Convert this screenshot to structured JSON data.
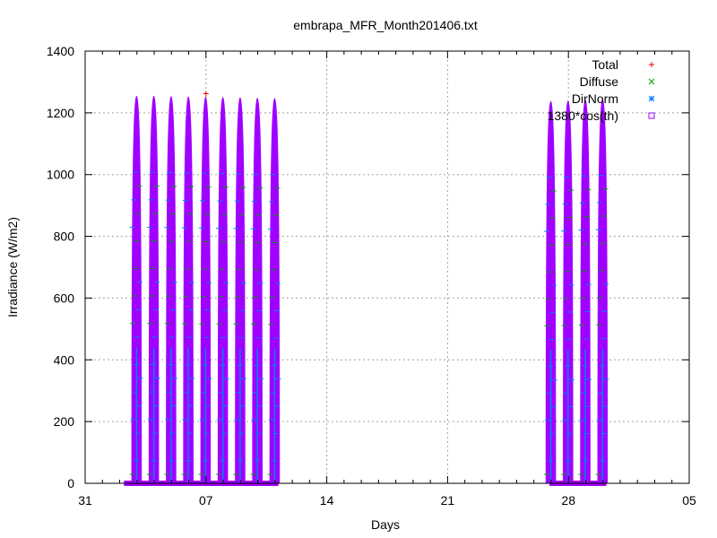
{
  "chart_data": {
    "type": "scatter",
    "title": "embrapa_MFR_Month201406.txt",
    "xlabel": "Days",
    "ylabel": "Irradiance (W/m2)",
    "xlim": [
      "2014-05-31",
      "2014-07-05"
    ],
    "ylim": [
      0,
      1400
    ],
    "x_ticks": [
      {
        "date": "2014-05-31",
        "label": "31"
      },
      {
        "date": "2014-06-07",
        "label": "07"
      },
      {
        "date": "2014-06-14",
        "label": "14"
      },
      {
        "date": "2014-06-21",
        "label": "21"
      },
      {
        "date": "2014-06-28",
        "label": "28"
      },
      {
        "date": "2014-07-05",
        "label": "05"
      }
    ],
    "y_ticks": [
      0,
      200,
      400,
      600,
      800,
      1000,
      1200,
      1400
    ],
    "grid": true,
    "legend_position": "top-right",
    "series": [
      {
        "name": "Total",
        "marker": "+",
        "color": "#ff0000"
      },
      {
        "name": "Diffuse",
        "marker": "x",
        "color": "#00a000"
      },
      {
        "name": "DirNorm",
        "marker": "*",
        "color": "#0080ff"
      },
      {
        "name": "1380*cos(th)",
        "marker": "square",
        "color": "#a000ff"
      }
    ],
    "daily_envelope": {
      "series": "1380*cos(th)",
      "days": [
        {
          "date": "2014-06-03",
          "peak": 1255
        },
        {
          "date": "2014-06-04",
          "peak": 1255
        },
        {
          "date": "2014-06-05",
          "peak": 1254
        },
        {
          "date": "2014-06-06",
          "peak": 1253
        },
        {
          "date": "2014-06-07",
          "peak": 1252
        },
        {
          "date": "2014-06-08",
          "peak": 1251
        },
        {
          "date": "2014-06-09",
          "peak": 1250
        },
        {
          "date": "2014-06-10",
          "peak": 1249
        },
        {
          "date": "2014-06-11",
          "peak": 1248
        },
        {
          "date": "2014-06-27",
          "peak": 1238
        },
        {
          "date": "2014-06-28",
          "peak": 1240
        },
        {
          "date": "2014-06-29",
          "peak": 1243
        },
        {
          "date": "2014-06-30",
          "peak": 1245
        }
      ]
    },
    "annotations": [
      {
        "series": "Total",
        "date": "2014-06-07",
        "value": 1262
      }
    ]
  }
}
